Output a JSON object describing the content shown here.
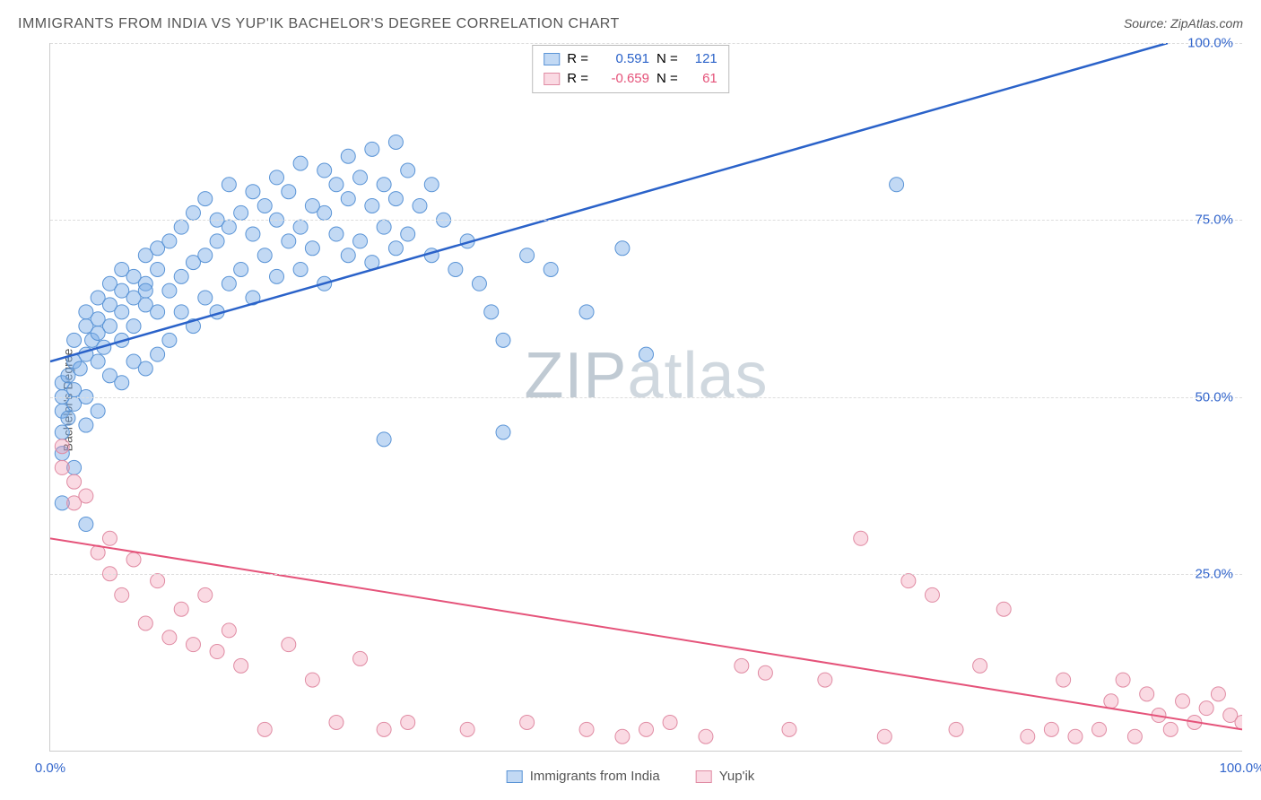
{
  "title": "IMMIGRANTS FROM INDIA VS YUP'IK BACHELOR'S DEGREE CORRELATION CHART",
  "source": "Source: ZipAtlas.com",
  "ylabel": "Bachelor's Degree",
  "watermark_a": "ZIP",
  "watermark_b": "atlas",
  "chart": {
    "type": "scatter",
    "xlim": [
      0,
      100
    ],
    "ylim": [
      0,
      100
    ],
    "xticks": [
      {
        "v": 0,
        "l": "0.0%"
      },
      {
        "v": 100,
        "l": "100.0%"
      }
    ],
    "yticks": [
      {
        "v": 25,
        "l": "25.0%"
      },
      {
        "v": 50,
        "l": "50.0%"
      },
      {
        "v": 75,
        "l": "75.0%"
      },
      {
        "v": 100,
        "l": "100.0%"
      }
    ],
    "grid_color": "#dddddd",
    "axis_color": "#cccccc",
    "background_color": "#ffffff",
    "series": [
      {
        "name": "Immigrants from India",
        "color_fill": "rgba(120,170,230,0.45)",
        "color_stroke": "#5a94d6",
        "trend_color": "#2a62c9",
        "trend_width": 2.5,
        "trend": {
          "x1": 0,
          "y1": 55,
          "x2": 100,
          "y2": 103
        },
        "R": "0.591",
        "N": "121",
        "marker_r": 8,
        "points": [
          [
            1,
            42
          ],
          [
            1,
            45
          ],
          [
            1,
            48
          ],
          [
            1,
            50
          ],
          [
            1,
            52
          ],
          [
            1.5,
            47
          ],
          [
            1.5,
            53
          ],
          [
            2,
            40
          ],
          [
            2,
            49
          ],
          [
            2,
            51
          ],
          [
            2,
            55
          ],
          [
            2,
            58
          ],
          [
            2.5,
            54
          ],
          [
            3,
            46
          ],
          [
            3,
            50
          ],
          [
            3,
            56
          ],
          [
            3,
            60
          ],
          [
            3,
            62
          ],
          [
            3.5,
            58
          ],
          [
            4,
            48
          ],
          [
            4,
            55
          ],
          [
            4,
            59
          ],
          [
            4,
            61
          ],
          [
            4,
            64
          ],
          [
            4.5,
            57
          ],
          [
            5,
            53
          ],
          [
            5,
            60
          ],
          [
            5,
            63
          ],
          [
            5,
            66
          ],
          [
            6,
            52
          ],
          [
            6,
            58
          ],
          [
            6,
            62
          ],
          [
            6,
            65
          ],
          [
            6,
            68
          ],
          [
            7,
            55
          ],
          [
            7,
            60
          ],
          [
            7,
            64
          ],
          [
            7,
            67
          ],
          [
            8,
            54
          ],
          [
            8,
            63
          ],
          [
            8,
            66
          ],
          [
            8,
            70
          ],
          [
            9,
            56
          ],
          [
            9,
            62
          ],
          [
            9,
            68
          ],
          [
            9,
            71
          ],
          [
            10,
            58
          ],
          [
            10,
            65
          ],
          [
            10,
            72
          ],
          [
            11,
            62
          ],
          [
            11,
            67
          ],
          [
            11,
            74
          ],
          [
            12,
            60
          ],
          [
            12,
            69
          ],
          [
            12,
            76
          ],
          [
            13,
            64
          ],
          [
            13,
            70
          ],
          [
            13,
            78
          ],
          [
            14,
            62
          ],
          [
            14,
            72
          ],
          [
            14,
            75
          ],
          [
            15,
            66
          ],
          [
            15,
            74
          ],
          [
            15,
            80
          ],
          [
            16,
            68
          ],
          [
            16,
            76
          ],
          [
            17,
            64
          ],
          [
            17,
            73
          ],
          [
            17,
            79
          ],
          [
            18,
            70
          ],
          [
            18,
            77
          ],
          [
            19,
            67
          ],
          [
            19,
            75
          ],
          [
            19,
            81
          ],
          [
            20,
            72
          ],
          [
            20,
            79
          ],
          [
            21,
            68
          ],
          [
            21,
            74
          ],
          [
            21,
            83
          ],
          [
            22,
            71
          ],
          [
            22,
            77
          ],
          [
            23,
            66
          ],
          [
            23,
            76
          ],
          [
            23,
            82
          ],
          [
            24,
            73
          ],
          [
            24,
            80
          ],
          [
            25,
            70
          ],
          [
            25,
            78
          ],
          [
            25,
            84
          ],
          [
            26,
            72
          ],
          [
            26,
            81
          ],
          [
            27,
            69
          ],
          [
            27,
            77
          ],
          [
            27,
            85
          ],
          [
            28,
            74
          ],
          [
            28,
            80
          ],
          [
            29,
            71
          ],
          [
            29,
            78
          ],
          [
            29,
            86
          ],
          [
            30,
            73
          ],
          [
            30,
            82
          ],
          [
            31,
            77
          ],
          [
            32,
            70
          ],
          [
            32,
            80
          ],
          [
            33,
            75
          ],
          [
            34,
            68
          ],
          [
            35,
            72
          ],
          [
            36,
            66
          ],
          [
            37,
            62
          ],
          [
            38,
            58
          ],
          [
            40,
            70
          ],
          [
            42,
            68
          ],
          [
            45,
            62
          ],
          [
            48,
            71
          ],
          [
            50,
            56
          ],
          [
            28,
            44
          ],
          [
            38,
            45
          ],
          [
            1,
            35
          ],
          [
            71,
            80
          ],
          [
            8,
            65
          ],
          [
            3,
            32
          ]
        ]
      },
      {
        "name": "Yup'ik",
        "color_fill": "rgba(240,150,175,0.35)",
        "color_stroke": "#e08ba3",
        "trend_color": "#e5537a",
        "trend_width": 2,
        "trend": {
          "x1": 0,
          "y1": 30,
          "x2": 100,
          "y2": 3
        },
        "R": "-0.659",
        "N": "61",
        "marker_r": 8,
        "points": [
          [
            1,
            40
          ],
          [
            1,
            43
          ],
          [
            2,
            38
          ],
          [
            2,
            35
          ],
          [
            3,
            36
          ],
          [
            4,
            28
          ],
          [
            5,
            30
          ],
          [
            5,
            25
          ],
          [
            6,
            22
          ],
          [
            7,
            27
          ],
          [
            8,
            18
          ],
          [
            9,
            24
          ],
          [
            10,
            16
          ],
          [
            11,
            20
          ],
          [
            12,
            15
          ],
          [
            13,
            22
          ],
          [
            14,
            14
          ],
          [
            15,
            17
          ],
          [
            16,
            12
          ],
          [
            18,
            3
          ],
          [
            20,
            15
          ],
          [
            22,
            10
          ],
          [
            24,
            4
          ],
          [
            26,
            13
          ],
          [
            28,
            3
          ],
          [
            30,
            4
          ],
          [
            35,
            3
          ],
          [
            40,
            4
          ],
          [
            45,
            3
          ],
          [
            48,
            2
          ],
          [
            50,
            3
          ],
          [
            52,
            4
          ],
          [
            55,
            2
          ],
          [
            58,
            12
          ],
          [
            60,
            11
          ],
          [
            62,
            3
          ],
          [
            65,
            10
          ],
          [
            68,
            30
          ],
          [
            70,
            2
          ],
          [
            72,
            24
          ],
          [
            74,
            22
          ],
          [
            76,
            3
          ],
          [
            78,
            12
          ],
          [
            80,
            20
          ],
          [
            82,
            2
          ],
          [
            84,
            3
          ],
          [
            85,
            10
          ],
          [
            86,
            2
          ],
          [
            88,
            3
          ],
          [
            89,
            7
          ],
          [
            90,
            10
          ],
          [
            91,
            2
          ],
          [
            92,
            8
          ],
          [
            93,
            5
          ],
          [
            94,
            3
          ],
          [
            95,
            7
          ],
          [
            96,
            4
          ],
          [
            97,
            6
          ],
          [
            98,
            8
          ],
          [
            99,
            5
          ],
          [
            100,
            4
          ]
        ]
      }
    ]
  },
  "legend_top": {
    "r_label": "R =",
    "n_label": "N ="
  },
  "tick_label_color": "#3366cc"
}
